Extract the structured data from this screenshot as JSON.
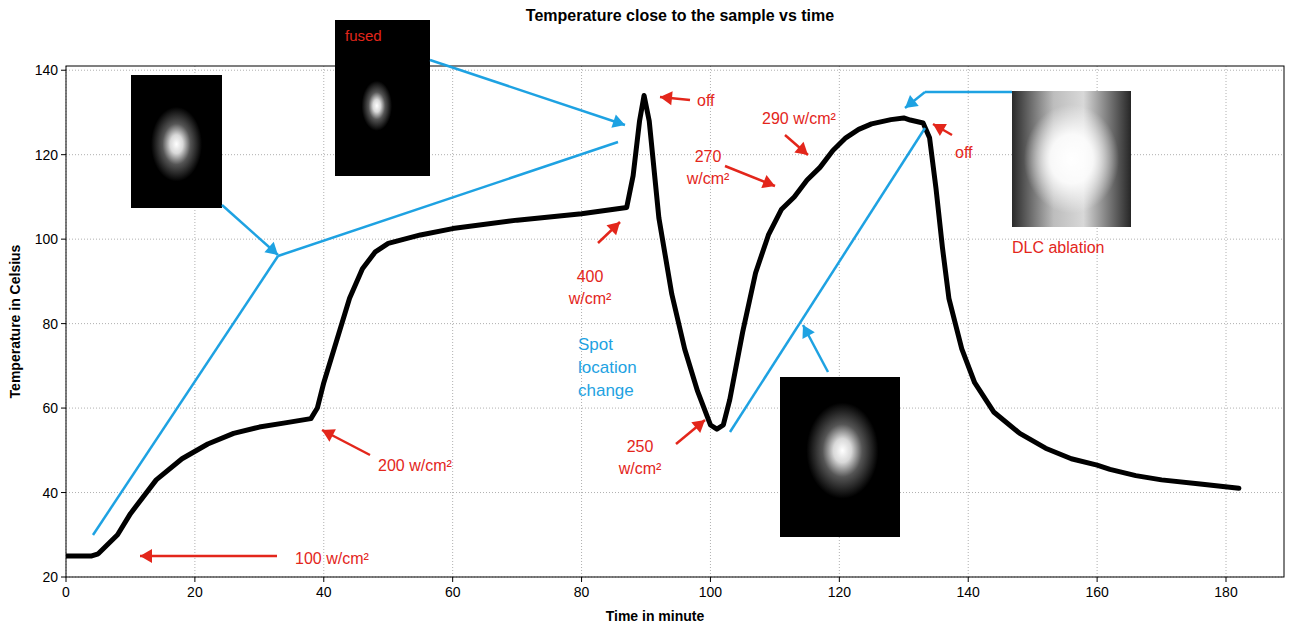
{
  "chart_data": {
    "type": "line",
    "title": "Temperature close to the sample vs time",
    "x_label": "Time in minute",
    "y_label": "Temperature in Celsius",
    "x": [
      0,
      4,
      5,
      8,
      10,
      14,
      18,
      22,
      26,
      30,
      34,
      38,
      39,
      40,
      42,
      44,
      46,
      48,
      50,
      55,
      60,
      70,
      80,
      87,
      88,
      89,
      89.7,
      90.5,
      92,
      94,
      96,
      98,
      100,
      101,
      102,
      103,
      105,
      107,
      109,
      111,
      113,
      115,
      117,
      119,
      121,
      123,
      125,
      128,
      130,
      131,
      133,
      134,
      135,
      136,
      137,
      139,
      141,
      144,
      148,
      152,
      156,
      160,
      162,
      166,
      170,
      176,
      182
    ],
    "values": [
      25,
      25,
      25.5,
      30,
      35,
      43,
      48,
      51.5,
      54,
      55.5,
      56.5,
      57.5,
      60,
      66,
      76,
      86,
      93,
      97,
      99,
      101,
      102.5,
      104.5,
      106,
      107.5,
      115,
      128,
      134,
      128,
      105,
      87,
      74,
      64,
      56,
      55,
      56,
      62,
      78,
      92,
      101,
      107,
      110,
      114,
      117,
      121,
      124,
      126,
      127.3,
      128.3,
      128.7,
      128.2,
      127.5,
      124,
      112,
      98,
      86,
      74,
      66,
      59,
      54,
      50.5,
      48,
      46.5,
      45.5,
      44,
      43,
      42,
      41
    ],
    "color": "#000000",
    "xlim": [
      0,
      189
    ],
    "ylim": [
      20,
      141
    ],
    "xticks": [
      0,
      20,
      40,
      60,
      80,
      100,
      120,
      140,
      160,
      180
    ],
    "yticks": [
      20,
      40,
      60,
      80,
      100,
      120,
      140
    ],
    "grid": true,
    "annotations": [
      "100 w/cm²",
      "200 w/cm²",
      "400 w/cm²",
      "off",
      "250 w/cm²",
      "270 w/cm²",
      "290 w/cm²",
      "off",
      "Spot location change",
      "fused",
      "DLC ablation"
    ]
  }
}
